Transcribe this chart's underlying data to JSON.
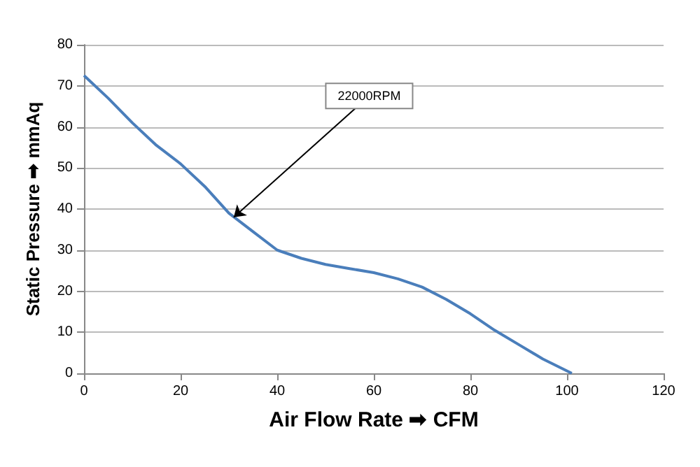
{
  "chart_data": {
    "type": "line",
    "xlabel": "Air Flow Rate ➡ CFM",
    "ylabel": "Static Pressure ➡ mmAq",
    "x": [
      0,
      5,
      10,
      15,
      20,
      25,
      30,
      35,
      40,
      45,
      50,
      55,
      60,
      65,
      70,
      75,
      80,
      85,
      90,
      95,
      101
    ],
    "series": [
      {
        "color": "#4a7ebb",
        "values": [
          72.5,
          67,
          61,
          55.5,
          51,
          45.5,
          39,
          34.5,
          30,
          28,
          26.5,
          25.5,
          24.5,
          23,
          21,
          18,
          14.5,
          10.5,
          7,
          3.5,
          0
        ]
      }
    ],
    "xlim": [
      0,
      120
    ],
    "xticks": [
      0,
      20,
      40,
      60,
      80,
      100,
      120
    ],
    "ylim": [
      0,
      80
    ],
    "yticks": [
      0,
      10,
      20,
      30,
      40,
      50,
      60,
      70,
      80
    ],
    "grid": "y",
    "marker": "none",
    "line_style": "solid",
    "annotations": [
      {
        "text": "22000RPM",
        "x": 31,
        "y": 38
      }
    ]
  }
}
